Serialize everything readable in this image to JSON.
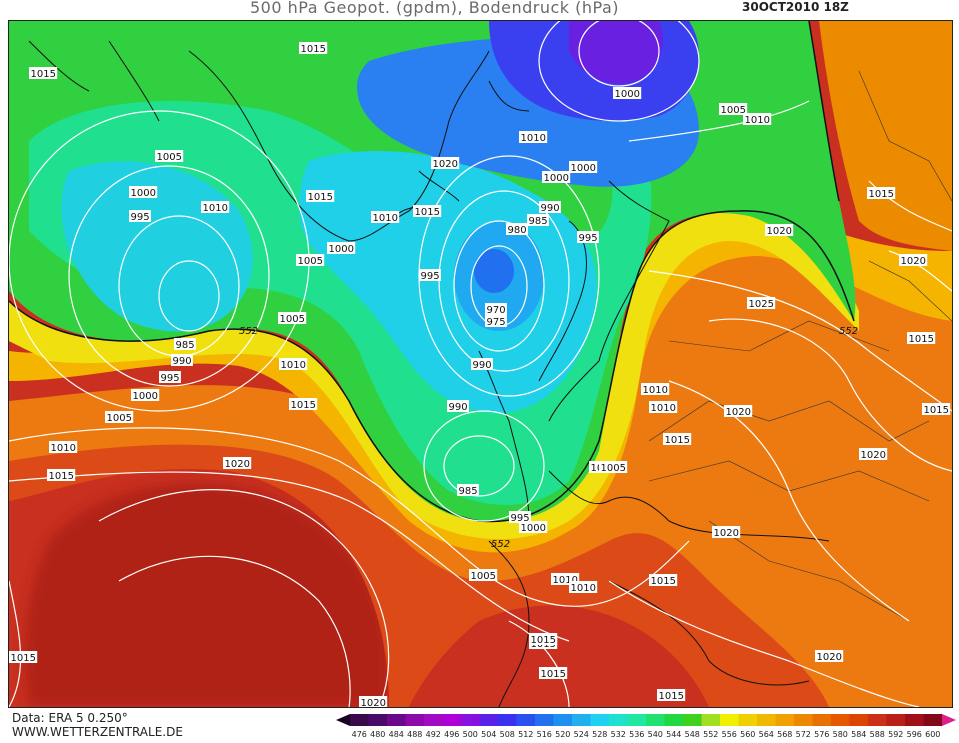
{
  "header": {
    "title": "500 hPa Geopot. (gpdm), Bodendruck (hPa)",
    "datetime": "30OCT2010 18Z"
  },
  "footer": {
    "data_source": "Data: ERA 5 0.250°",
    "website": "WWW.WETTERZENTRALE.DE"
  },
  "legend": {
    "values": [
      "476",
      "480",
      "484",
      "488",
      "492",
      "496",
      "500",
      "504",
      "508",
      "512",
      "516",
      "520",
      "524",
      "528",
      "532",
      "536",
      "540",
      "544",
      "548",
      "552",
      "556",
      "560",
      "564",
      "568",
      "572",
      "576",
      "580",
      "584",
      "588",
      "592",
      "596",
      "600"
    ],
    "colors": [
      "#3a0a4a",
      "#4a0a6a",
      "#6a0a8a",
      "#8a0aaa",
      "#a00ac0",
      "#b000d8",
      "#8a10e0",
      "#5a20e8",
      "#3a30f0",
      "#2a50f0",
      "#2070f0",
      "#2090f0",
      "#20b0f0",
      "#20d0f0",
      "#20e0d0",
      "#20e8a0",
      "#20e070",
      "#20d840",
      "#40d020",
      "#a0e020",
      "#f0f000",
      "#f0d000",
      "#f0b800",
      "#f0a000",
      "#ec8800",
      "#e87000",
      "#e45800",
      "#dc4400",
      "#cc3018",
      "#b82018",
      "#a01018",
      "#800818"
    ]
  },
  "map": {
    "contour_552_label": "552",
    "isobar_labels": [
      {
        "text": "1015",
        "id": "a1"
      },
      {
        "text": "1015",
        "id": "a2"
      },
      {
        "text": "1005",
        "id": "a3"
      },
      {
        "text": "1000",
        "id": "a4"
      },
      {
        "text": "995",
        "id": "a5"
      },
      {
        "text": "1010",
        "id": "a6"
      },
      {
        "text": "1015",
        "id": "a7"
      },
      {
        "text": "1010",
        "id": "a8"
      },
      {
        "text": "1015",
        "id": "a9"
      },
      {
        "text": "1020",
        "id": "a10"
      },
      {
        "text": "1000",
        "id": "a11"
      },
      {
        "text": "1005",
        "id": "a12"
      },
      {
        "text": "995",
        "id": "a13"
      },
      {
        "text": "1005",
        "id": "a14"
      },
      {
        "text": "1010",
        "id": "a15"
      },
      {
        "text": "1000",
        "id": "a16"
      },
      {
        "text": "990",
        "id": "a17"
      },
      {
        "text": "985",
        "id": "a18"
      },
      {
        "text": "980",
        "id": "a19"
      },
      {
        "text": "995",
        "id": "a20"
      },
      {
        "text": "970",
        "id": "a21"
      },
      {
        "text": "975",
        "id": "a22"
      },
      {
        "text": "990",
        "id": "a23"
      },
      {
        "text": "990",
        "id": "a24"
      },
      {
        "text": "985",
        "id": "a25"
      },
      {
        "text": "995",
        "id": "a26"
      },
      {
        "text": "1000",
        "id": "a27"
      },
      {
        "text": "1005",
        "id": "a28"
      },
      {
        "text": "985",
        "id": "a29"
      },
      {
        "text": "990",
        "id": "a30"
      },
      {
        "text": "995",
        "id": "a31"
      },
      {
        "text": "1000",
        "id": "a32"
      },
      {
        "text": "1005",
        "id": "a33"
      },
      {
        "text": "1010",
        "id": "a34"
      },
      {
        "text": "1015",
        "id": "a35"
      },
      {
        "text": "1005",
        "id": "a36"
      },
      {
        "text": "1010",
        "id": "a37"
      },
      {
        "text": "1015",
        "id": "a38"
      },
      {
        "text": "1020",
        "id": "a39"
      },
      {
        "text": "1000",
        "id": "a40"
      },
      {
        "text": "1010",
        "id": "a41"
      },
      {
        "text": "1005",
        "id": "a42"
      },
      {
        "text": "1010",
        "id": "a43"
      },
      {
        "text": "1015",
        "id": "a44"
      },
      {
        "text": "1020",
        "id": "a45"
      },
      {
        "text": "1025",
        "id": "a46"
      },
      {
        "text": "1015",
        "id": "a47"
      },
      {
        "text": "1010",
        "id": "a48"
      },
      {
        "text": "1020",
        "id": "a49"
      },
      {
        "text": "1015",
        "id": "a50"
      },
      {
        "text": "1020",
        "id": "a51"
      },
      {
        "text": "1015",
        "id": "a52"
      },
      {
        "text": "1020",
        "id": "a53"
      },
      {
        "text": "1015",
        "id": "a54"
      },
      {
        "text": "1015",
        "id": "a55"
      },
      {
        "text": "1015",
        "id": "a56"
      },
      {
        "text": "1015",
        "id": "a57"
      },
      {
        "text": "1020",
        "id": "a58"
      },
      {
        "text": "1020",
        "id": "a59"
      },
      {
        "text": "1015",
        "id": "a60"
      },
      {
        "text": "1020",
        "id": "a61"
      },
      {
        "text": "1005",
        "id": "a62"
      },
      {
        "text": "1010",
        "id": "a63"
      },
      {
        "text": "1015",
        "id": "a64"
      },
      {
        "text": "1000",
        "id": "a65"
      },
      {
        "text": "1010",
        "id": "a66"
      }
    ]
  }
}
